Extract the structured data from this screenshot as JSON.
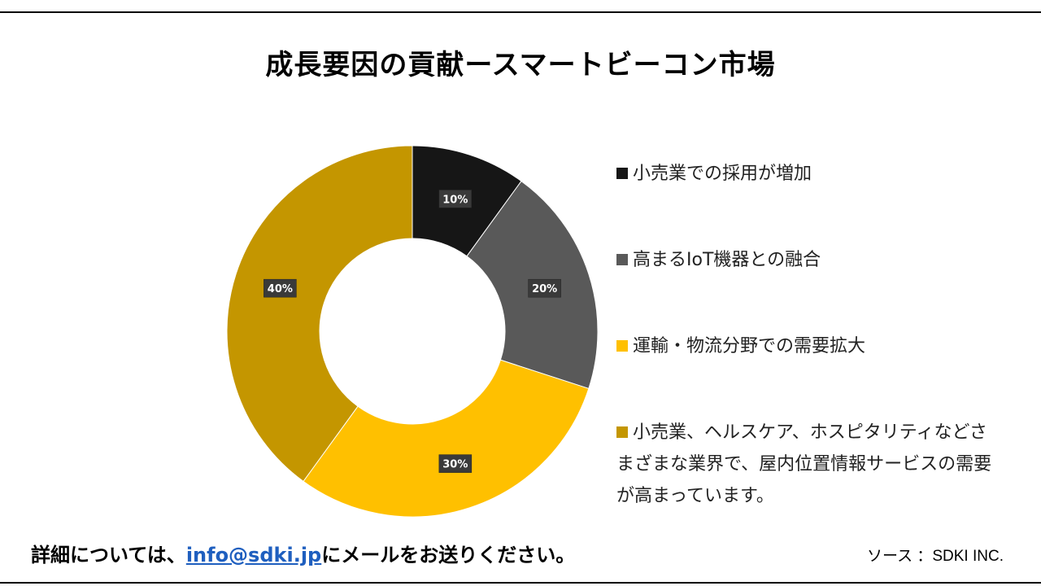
{
  "title": "成長要因の貢献ースマートビーコン市場",
  "chart_data": {
    "type": "pie",
    "title": "成長要因の貢献ースマートビーコン市場",
    "categories": [
      "小売業での採用が増加",
      "高まるIoT機器との融合",
      "運輸・物流分野での需要拡大",
      "小売業、ヘルスケア、ホスピタリティなどさまざまな業界で、屋内位置情報サービスの需要が高まっています。"
    ],
    "values": [
      10,
      20,
      30,
      40
    ],
    "labels": [
      "10%",
      "20%",
      "30%",
      "40%"
    ],
    "colors": [
      "#161616",
      "#595959",
      "#FFC000",
      "#C49600"
    ],
    "hole": "donut",
    "legend": "right"
  },
  "footer": {
    "prefix": "詳細については、",
    "email": "info@sdki.jp",
    "suffix": "にメールをお送りください。",
    "source": "ソース ：SDKI INC."
  }
}
